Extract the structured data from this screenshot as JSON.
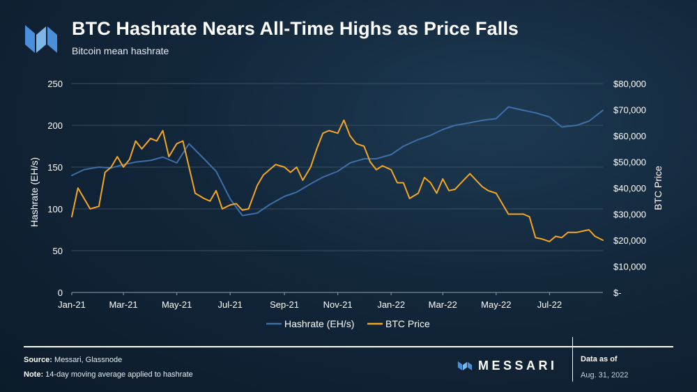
{
  "header": {
    "title": "BTC Hashrate Nears All-Time Highs as Price Falls",
    "subtitle": "Bitcoin mean hashrate"
  },
  "footer": {
    "source_label": "Source:",
    "source_text": "Messari, Glassnode",
    "note_label": "Note:",
    "note_text": "14-day moving average applied to hashrate",
    "brand": "MESSARI",
    "data_as_of_label": "Data as of",
    "data_as_of_date": "Aug. 31, 2022"
  },
  "colors": {
    "hashrate": "#3d6fa8",
    "price": "#f5a623",
    "logo": "#4a90d9",
    "grid": "#3a4d60",
    "text": "#ffffff"
  },
  "chart_data": {
    "type": "line",
    "x_axis": {
      "labels": [
        "Jan-21",
        "Mar-21",
        "May-21",
        "Jul-21",
        "Sep-21",
        "Nov-21",
        "Jan-22",
        "Mar-22",
        "May-22",
        "Jul-22"
      ],
      "range": [
        "2021-01-01",
        "2022-08-31"
      ]
    },
    "y_left": {
      "label": "Hashrate (EH/s)",
      "range": [
        0,
        250
      ],
      "ticks": [
        "0",
        "50",
        "100",
        "150",
        "200",
        "250"
      ]
    },
    "y_right": {
      "label": "BTC Price",
      "range": [
        0,
        80000
      ],
      "ticks": [
        "$-",
        "$10,000",
        "$20,000",
        "$30,000",
        "$40,000",
        "$50,000",
        "$60,000",
        "$70,000",
        "$80,000"
      ]
    },
    "grid": "horizontal",
    "legend": {
      "position": "bottom-center"
    },
    "series": [
      {
        "name": "Hashrate (EH/s)",
        "axis": "left",
        "x": [
          "2021-01-01",
          "2021-01-15",
          "2021-02-01",
          "2021-02-15",
          "2021-03-01",
          "2021-03-15",
          "2021-04-01",
          "2021-04-15",
          "2021-05-01",
          "2021-05-15",
          "2021-06-01",
          "2021-06-15",
          "2021-07-01",
          "2021-07-15",
          "2021-08-01",
          "2021-08-15",
          "2021-09-01",
          "2021-09-15",
          "2021-10-01",
          "2021-10-15",
          "2021-11-01",
          "2021-11-15",
          "2021-12-01",
          "2021-12-15",
          "2022-01-01",
          "2022-01-15",
          "2022-02-01",
          "2022-02-15",
          "2022-03-01",
          "2022-03-15",
          "2022-04-01",
          "2022-04-15",
          "2022-05-01",
          "2022-05-15",
          "2022-06-01",
          "2022-06-15",
          "2022-07-01",
          "2022-07-15",
          "2022-08-01",
          "2022-08-15",
          "2022-08-31"
        ],
        "y": [
          140,
          147,
          150,
          149,
          153,
          156,
          158,
          162,
          155,
          178,
          160,
          145,
          112,
          92,
          95,
          105,
          115,
          120,
          130,
          138,
          145,
          155,
          160,
          160,
          165,
          175,
          183,
          188,
          195,
          200,
          203,
          206,
          208,
          222,
          218,
          215,
          210,
          198,
          200,
          205,
          218
        ]
      },
      {
        "name": "BTC Price",
        "axis": "right",
        "x": [
          "2021-01-01",
          "2021-01-08",
          "2021-01-15",
          "2021-01-22",
          "2021-02-01",
          "2021-02-08",
          "2021-02-15",
          "2021-02-22",
          "2021-03-01",
          "2021-03-08",
          "2021-03-15",
          "2021-03-22",
          "2021-04-01",
          "2021-04-08",
          "2021-04-15",
          "2021-04-22",
          "2021-05-01",
          "2021-05-08",
          "2021-05-15",
          "2021-05-22",
          "2021-06-01",
          "2021-06-08",
          "2021-06-15",
          "2021-06-22",
          "2021-07-01",
          "2021-07-08",
          "2021-07-15",
          "2021-07-22",
          "2021-08-01",
          "2021-08-08",
          "2021-08-15",
          "2021-08-22",
          "2021-09-01",
          "2021-09-08",
          "2021-09-15",
          "2021-09-22",
          "2021-10-01",
          "2021-10-08",
          "2021-10-15",
          "2021-10-22",
          "2021-11-01",
          "2021-11-08",
          "2021-11-15",
          "2021-11-22",
          "2021-12-01",
          "2021-12-08",
          "2021-12-15",
          "2021-12-22",
          "2022-01-01",
          "2022-01-08",
          "2022-01-15",
          "2022-01-22",
          "2022-02-01",
          "2022-02-08",
          "2022-02-15",
          "2022-02-22",
          "2022-03-01",
          "2022-03-08",
          "2022-03-15",
          "2022-03-22",
          "2022-04-01",
          "2022-04-08",
          "2022-04-15",
          "2022-04-22",
          "2022-05-01",
          "2022-05-08",
          "2022-05-15",
          "2022-05-22",
          "2022-06-01",
          "2022-06-08",
          "2022-06-15",
          "2022-06-22",
          "2022-07-01",
          "2022-07-08",
          "2022-07-15",
          "2022-07-22",
          "2022-08-01",
          "2022-08-08",
          "2022-08-15",
          "2022-08-22",
          "2022-08-31"
        ],
        "y": [
          29000,
          40000,
          36000,
          32000,
          33000,
          46000,
          48000,
          52000,
          48000,
          51000,
          58000,
          55000,
          59000,
          58000,
          62000,
          52000,
          57000,
          58000,
          48000,
          38000,
          36000,
          35000,
          39000,
          32000,
          33500,
          34000,
          31500,
          32000,
          41000,
          45000,
          47000,
          49000,
          48000,
          46000,
          48000,
          43000,
          48000,
          55000,
          61000,
          62000,
          61000,
          66000,
          60000,
          57000,
          56000,
          50000,
          47000,
          48500,
          47000,
          42000,
          42000,
          36000,
          38000,
          44000,
          42000,
          38000,
          43500,
          39000,
          39500,
          42000,
          45500,
          43000,
          40500,
          39000,
          38000,
          34000,
          30000,
          30000,
          30000,
          29000,
          21000,
          20500,
          19500,
          21500,
          21000,
          23000,
          23000,
          23500,
          24000,
          21500,
          20000
        ]
      }
    ]
  }
}
